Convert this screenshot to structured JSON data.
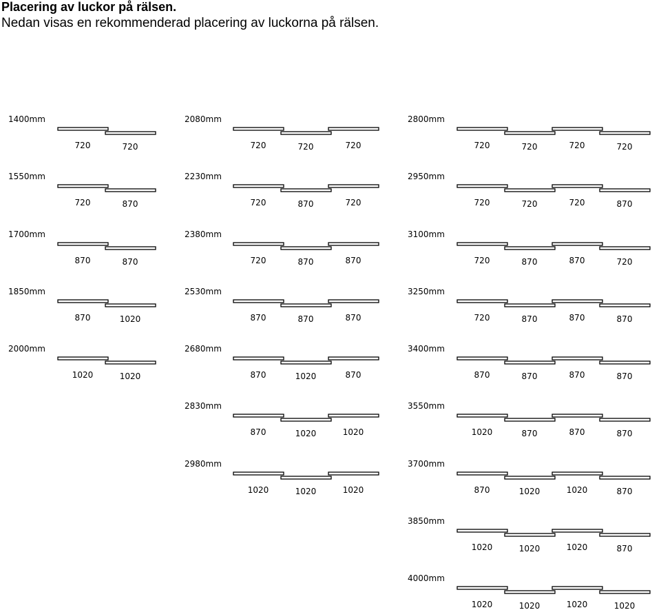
{
  "header": {
    "title": "Placering av luckor på rälsen.",
    "subtitle": "Nedan visas en rekommenderad placering av luckorna på rälsen."
  },
  "configurations": [
    {
      "total": "1400mm",
      "doors": [
        "720",
        "720"
      ]
    },
    {
      "total": "2080mm",
      "doors": [
        "720",
        "720",
        "720"
      ]
    },
    {
      "total": "2800mm",
      "doors": [
        "720",
        "720",
        "720",
        "720"
      ]
    },
    {
      "total": "1550mm",
      "doors": [
        "720",
        "870"
      ]
    },
    {
      "total": "2230mm",
      "doors": [
        "720",
        "870",
        "720"
      ]
    },
    {
      "total": "2950mm",
      "doors": [
        "720",
        "720",
        "720",
        "870"
      ]
    },
    {
      "total": "1700mm",
      "doors": [
        "870",
        "870"
      ]
    },
    {
      "total": "2380mm",
      "doors": [
        "720",
        "870",
        "870"
      ]
    },
    {
      "total": "3100mm",
      "doors": [
        "720",
        "870",
        "870",
        "720"
      ]
    },
    {
      "total": "1850mm",
      "doors": [
        "870",
        "1020"
      ]
    },
    {
      "total": "2530mm",
      "doors": [
        "870",
        "870",
        "870"
      ]
    },
    {
      "total": "3250mm",
      "doors": [
        "720",
        "870",
        "870",
        "870"
      ]
    },
    {
      "total": "2000mm",
      "doors": [
        "1020",
        "1020"
      ]
    },
    {
      "total": "2680mm",
      "doors": [
        "870",
        "1020",
        "870"
      ]
    },
    {
      "total": "3400mm",
      "doors": [
        "870",
        "870",
        "870",
        "870"
      ]
    },
    {
      "total": "2830mm",
      "doors": [
        "870",
        "1020",
        "1020"
      ]
    },
    {
      "total": "3550mm",
      "doors": [
        "1020",
        "870",
        "870",
        "870"
      ]
    },
    {
      "total": "2980mm",
      "doors": [
        "1020",
        "1020",
        "1020"
      ]
    },
    {
      "total": "3700mm",
      "doors": [
        "870",
        "1020",
        "1020",
        "870"
      ]
    },
    {
      "total": "3850mm",
      "doors": [
        "1020",
        "1020",
        "1020",
        "870"
      ]
    },
    {
      "total": "4000mm",
      "doors": [
        "1020",
        "1020",
        "1020",
        "1020"
      ]
    }
  ]
}
